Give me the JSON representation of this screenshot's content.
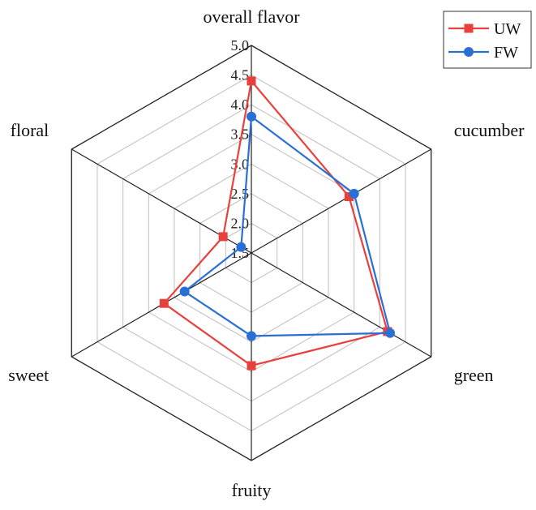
{
  "chart_data": {
    "type": "radar",
    "axes": [
      "overall flavor",
      "cucumber",
      "green",
      "fruity",
      "sweet",
      "floral"
    ],
    "range": [
      1.5,
      5.0
    ],
    "ticks": [
      "1.5",
      "2.0",
      "2.5",
      "3.0",
      "3.5",
      "4.0",
      "4.5",
      "5.0"
    ],
    "grid": true,
    "legend_position": "top-right",
    "series": [
      {
        "name": "UW",
        "values": [
          4.4,
          3.4,
          4.15,
          3.4,
          3.2,
          2.05
        ],
        "color": "#e8413c",
        "marker": "square"
      },
      {
        "name": "FW",
        "values": [
          3.8,
          3.5,
          4.2,
          2.9,
          2.8,
          1.7
        ],
        "color": "#2a6fd6",
        "marker": "circle"
      }
    ]
  }
}
